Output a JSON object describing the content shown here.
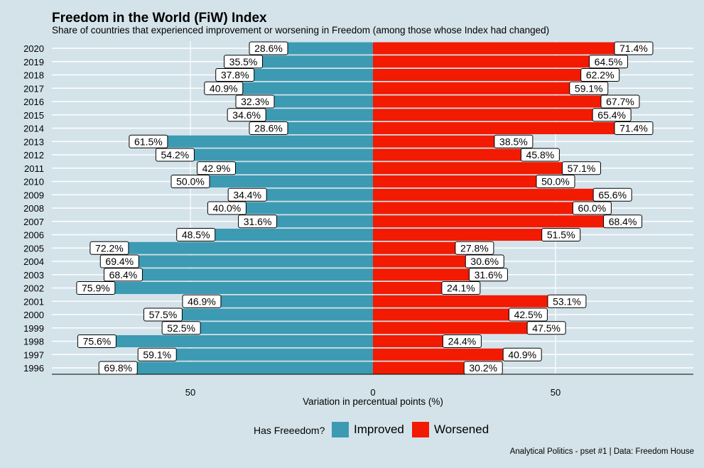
{
  "chart_data": {
    "type": "bar",
    "title": "Freedom in the World (FiW) Index",
    "subtitle": "Share of countries that experienced improvement or worsening in Freedom (among those whose Index had changed)",
    "xlabel": "Variation in percentual points (%)",
    "ylabel": "",
    "xlim": [
      -88,
      88
    ],
    "x_ticks": [
      -50,
      0,
      50
    ],
    "x_tick_labels": [
      "50",
      "0",
      "50"
    ],
    "categories": [
      "2020",
      "2019",
      "2018",
      "2017",
      "2016",
      "2015",
      "2014",
      "2013",
      "2012",
      "2011",
      "2010",
      "2009",
      "2008",
      "2007",
      "2006",
      "2005",
      "2004",
      "2003",
      "2002",
      "2001",
      "2000",
      "1999",
      "1998",
      "1997",
      "1996"
    ],
    "series": [
      {
        "name": "Improved",
        "color": "#3d9ab3",
        "direction": "left",
        "values": [
          28.6,
          35.5,
          37.8,
          40.9,
          32.3,
          34.6,
          28.6,
          61.5,
          54.2,
          42.9,
          50.0,
          34.4,
          40.0,
          31.6,
          48.5,
          72.2,
          69.4,
          68.4,
          75.9,
          46.9,
          57.5,
          52.5,
          75.6,
          59.1,
          69.8
        ],
        "labels": [
          "28.6%",
          "35.5%",
          "37.8%",
          "40.9%",
          "32.3%",
          "34.6%",
          "28.6%",
          "61.5%",
          "54.2%",
          "42.9%",
          "50.0%",
          "34.4%",
          "40.0%",
          "31.6%",
          "48.5%",
          "72.2%",
          "69.4%",
          "68.4%",
          "75.9%",
          "46.9%",
          "57.5%",
          "52.5%",
          "75.6%",
          "59.1%",
          "69.8%"
        ]
      },
      {
        "name": "Worsened",
        "color": "#f21a00",
        "direction": "right",
        "values": [
          71.4,
          64.5,
          62.2,
          59.1,
          67.7,
          65.4,
          71.4,
          38.5,
          45.8,
          57.1,
          50.0,
          65.6,
          60.0,
          68.4,
          51.5,
          27.8,
          30.6,
          31.6,
          24.1,
          53.1,
          42.5,
          47.5,
          24.4,
          40.9,
          30.2
        ],
        "labels": [
          "71.4%",
          "64.5%",
          "62.2%",
          "59.1%",
          "67.7%",
          "65.4%",
          "71.4%",
          "38.5%",
          "45.8%",
          "57.1%",
          "50.0%",
          "65.6%",
          "60.0%",
          "68.4%",
          "51.5%",
          "27.8%",
          "30.6%",
          "31.6%",
          "24.1%",
          "53.1%",
          "42.5%",
          "47.5%",
          "24.4%",
          "40.9%",
          "30.2%"
        ]
      }
    ],
    "grid": true,
    "legend": {
      "title": "Has Freeedom?",
      "position": "bottom"
    }
  },
  "caption": "Analytical Politics - pset #1  |  Data: Freedom House"
}
